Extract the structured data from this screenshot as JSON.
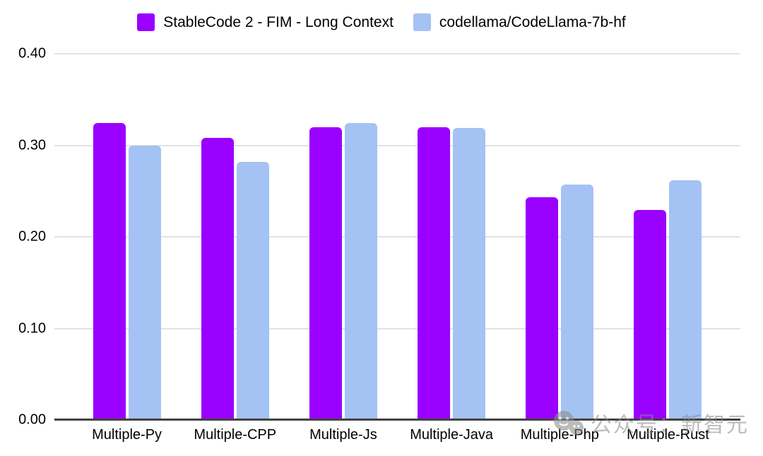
{
  "chart_data": {
    "type": "bar",
    "title": "",
    "categories": [
      "Multiple-Py",
      "Multiple-CPP",
      "Multiple-Js",
      "Multiple-Java",
      "Multiple-Php",
      "Multiple-Rust"
    ],
    "series": [
      {
        "name": "StableCode 2 - FIM - Long Context",
        "color": "#9900ff",
        "values": [
          0.324,
          0.308,
          0.32,
          0.32,
          0.243,
          0.229
        ]
      },
      {
        "name": "codellama/CodeLlama-7b-hf",
        "color": "#a4c2f4",
        "values": [
          0.3,
          0.282,
          0.324,
          0.319,
          0.257,
          0.262
        ]
      }
    ],
    "xlabel": "",
    "ylabel": "",
    "ylim": [
      0,
      0.4
    ],
    "yticks": [
      "0.40",
      "0.30",
      "0.20",
      "0.10",
      "0.00"
    ],
    "grid": true,
    "legend_position": "top"
  },
  "watermark": {
    "text": "公众号：新智元",
    "icon": "wechat-chat-bubbles-icon"
  },
  "colors": {
    "axis_line": "#424242",
    "gridline": "#e2e2e2",
    "text": "#000000",
    "background": "#ffffff"
  }
}
